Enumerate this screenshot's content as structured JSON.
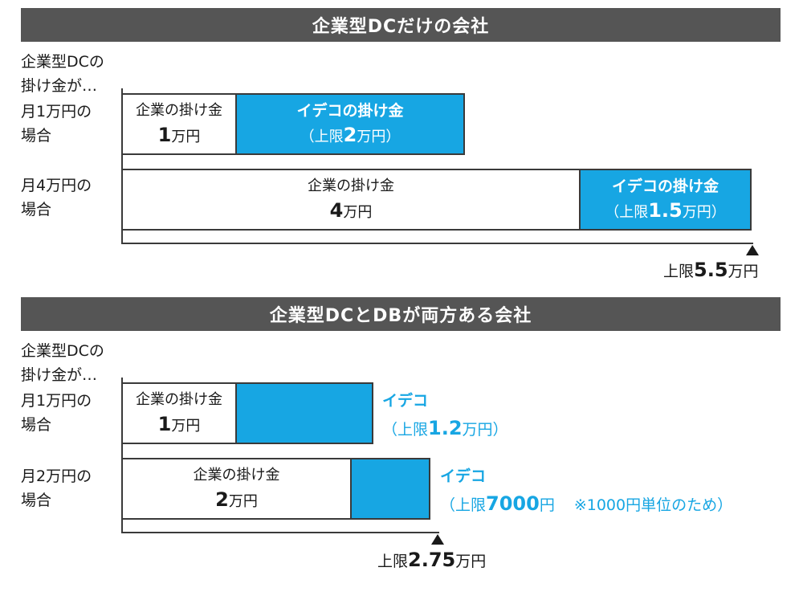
{
  "section1": {
    "header": "企業型DCだけの会社",
    "question_line1": "企業型DCの",
    "question_line2": "掛け金が…",
    "row1": {
      "label_line1": "月1万円の",
      "label_line2": "場合",
      "company_title": "企業の掛け金",
      "company_amount": "1",
      "company_unit": "万円",
      "ideco_title": "イデコの掛け金",
      "ideco_open": "（上限",
      "ideco_amount": "2",
      "ideco_close": "万円）"
    },
    "row2": {
      "label_line1": "月4万円の",
      "label_line2": "場合",
      "company_title": "企業の掛け金",
      "company_amount": "4",
      "company_unit": "万円",
      "ideco_title": "イデコの掛け金",
      "ideco_open": "（上限",
      "ideco_amount": "1.5",
      "ideco_close": "万円）"
    },
    "limit_prefix": "上限",
    "limit_amount": "5.5",
    "limit_unit": "万円"
  },
  "section2": {
    "header": "企業型DCとDBが両方ある会社",
    "question_line1": "企業型DCの",
    "question_line2": "掛け金が…",
    "row1": {
      "label_line1": "月1万円の",
      "label_line2": "場合",
      "company_title": "企業の掛け金",
      "company_amount": "1",
      "company_unit": "万円",
      "ideco_title": "イデコ",
      "ideco_open": "（上限",
      "ideco_amount": "1.2",
      "ideco_close": "万円）"
    },
    "row2": {
      "label_line1": "月2万円の",
      "label_line2": "場合",
      "company_title": "企業の掛け金",
      "company_amount": "2",
      "company_unit": "万円",
      "ideco_title": "イデコ",
      "ideco_open": "（上限",
      "ideco_amount": "7000",
      "ideco_close": "円",
      "note": "※1000円単位のため）"
    },
    "limit_prefix": "上限",
    "limit_amount": "2.75",
    "limit_unit": "万円"
  },
  "colors": {
    "header_bg": "#555555",
    "ideco_blue": "#17a6e3",
    "border": "#3a3a3a"
  }
}
